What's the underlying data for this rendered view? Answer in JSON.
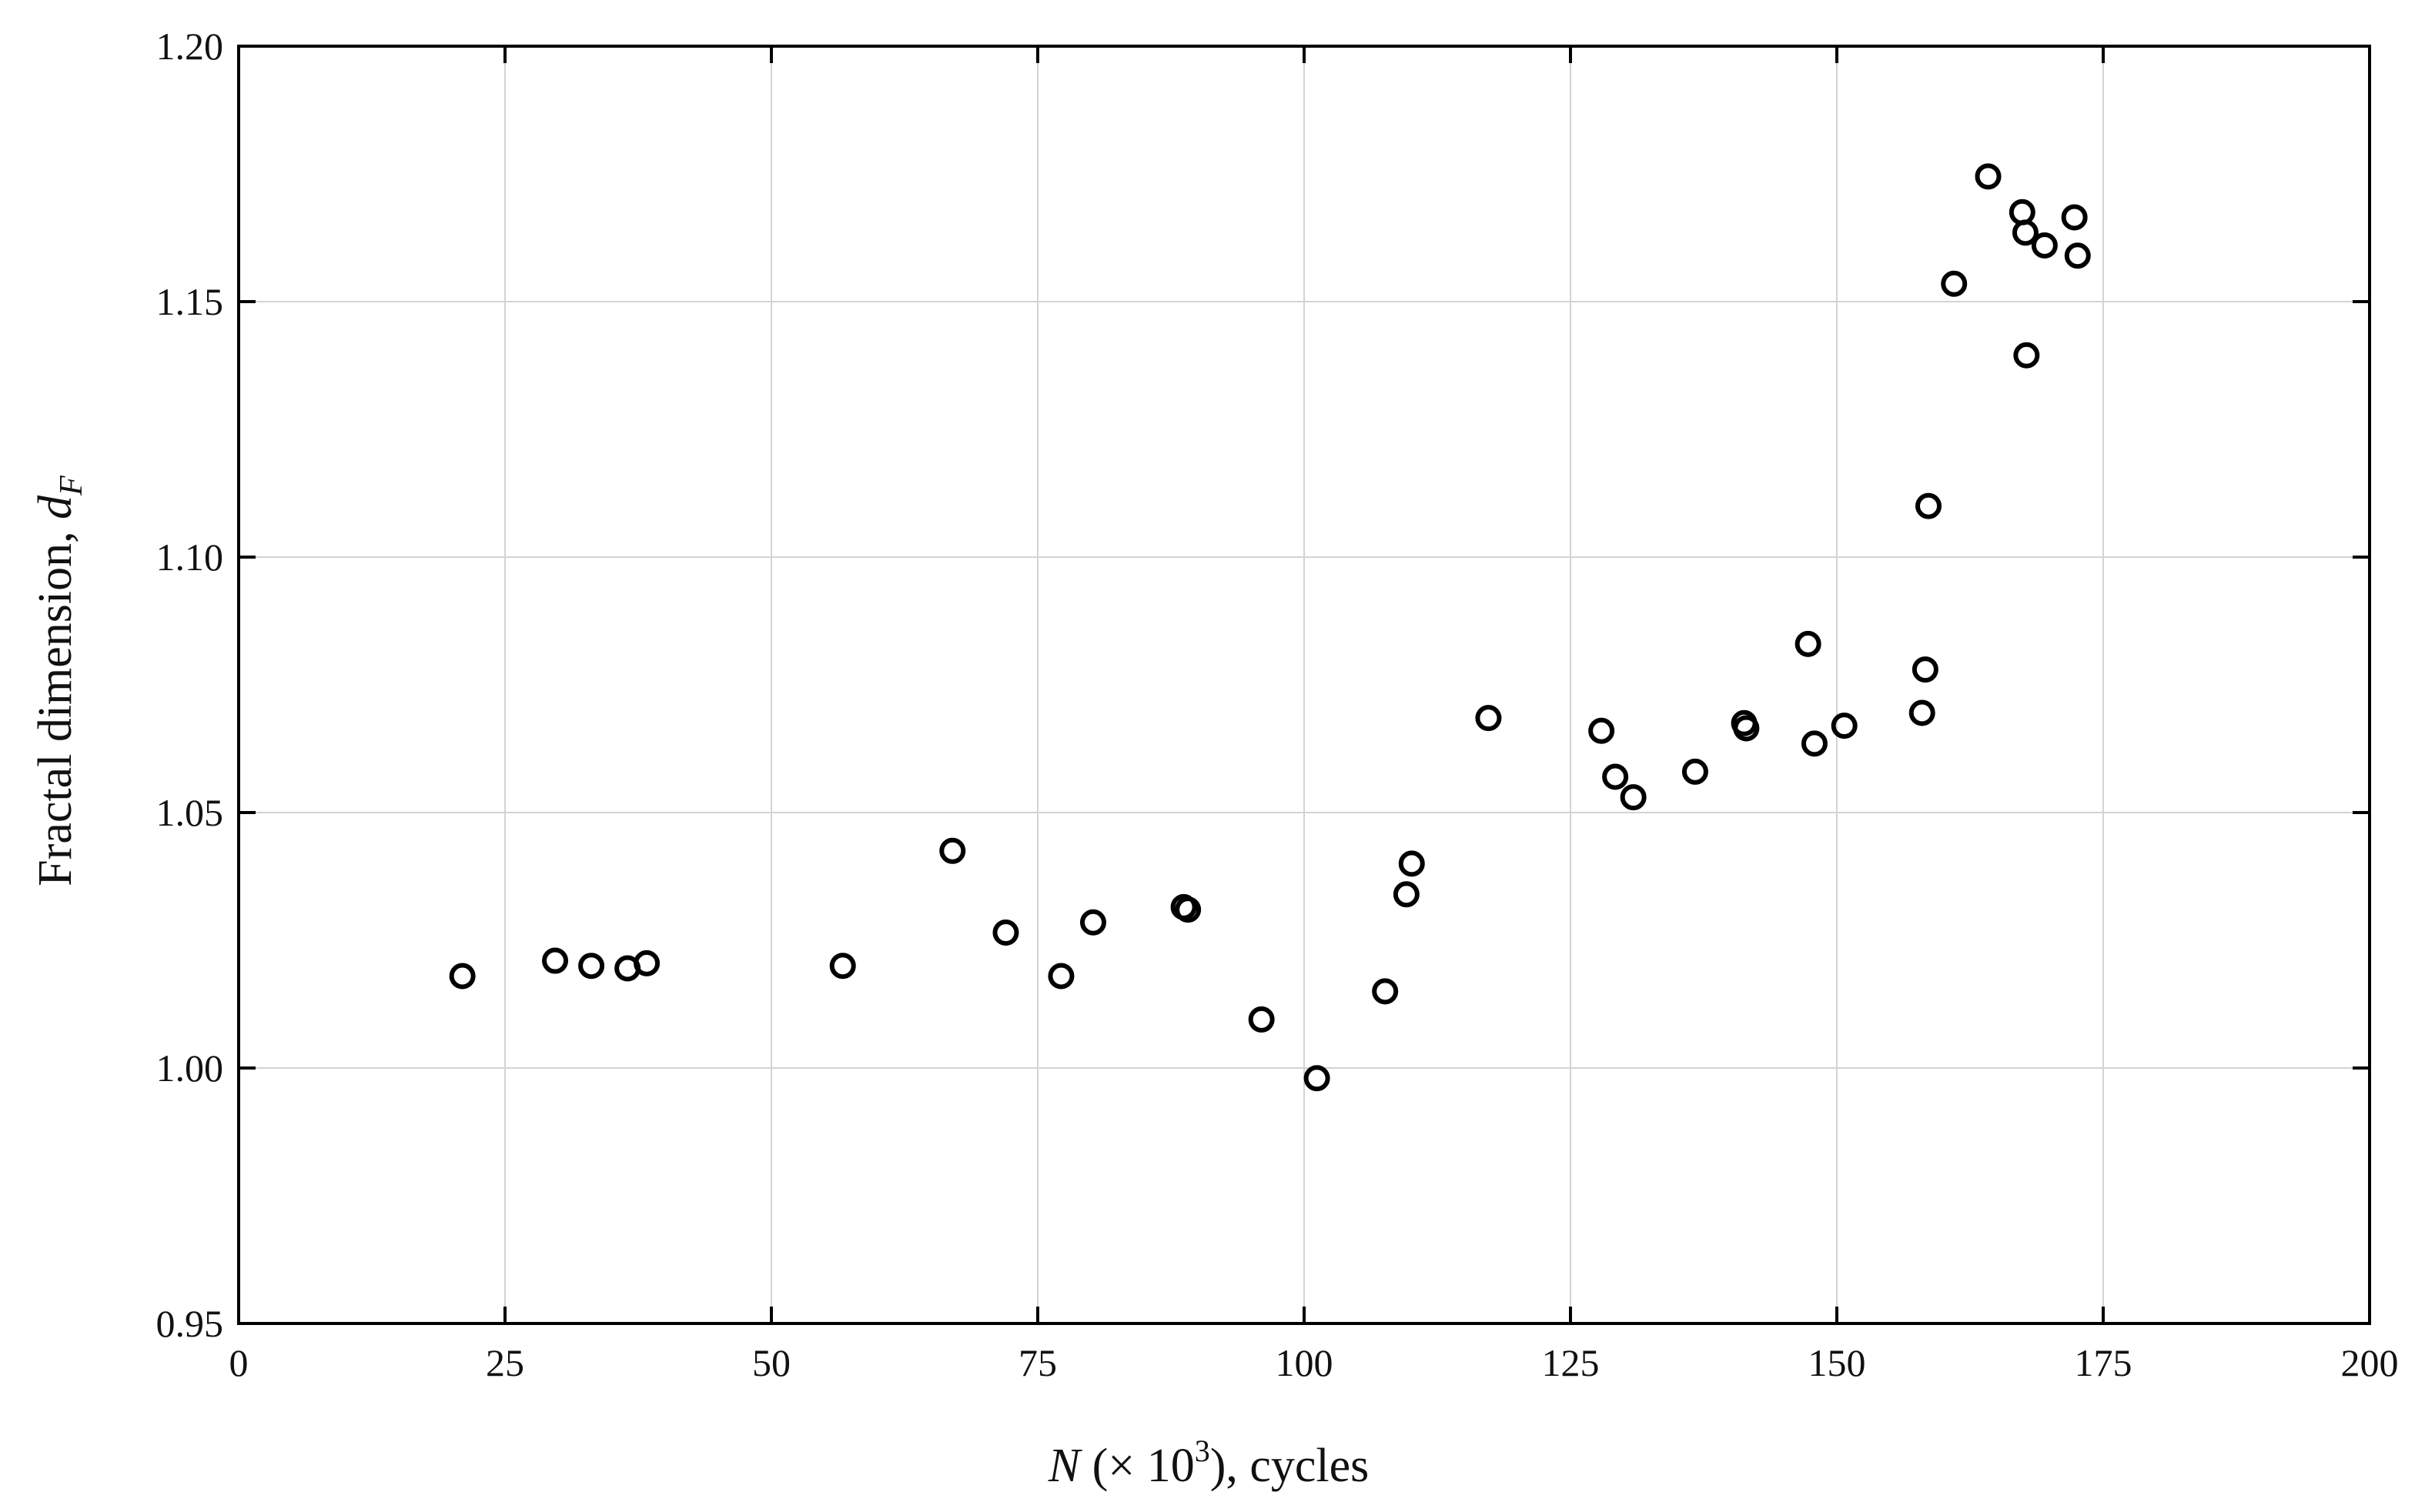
{
  "chart_data": {
    "type": "scatter",
    "title": "",
    "xlabel": {
      "var": "N",
      "mid": " (× 10",
      "sup": "3",
      "tail": "), cycles"
    },
    "ylabel": {
      "main": "Fractal dimension, ",
      "var": "d",
      "sub": "F"
    },
    "xlim": [
      0,
      200
    ],
    "ylim": [
      0.95,
      1.2
    ],
    "x_ticks": [
      0,
      25,
      50,
      75,
      100,
      125,
      150,
      175,
      200
    ],
    "x_tick_labels": [
      "0",
      "25",
      "50",
      "75",
      "100",
      "125",
      "150",
      "175",
      "200"
    ],
    "y_ticks": [
      0.95,
      1.0,
      1.05,
      1.1,
      1.15,
      1.2
    ],
    "y_tick_labels": [
      "0.95",
      "1.00",
      "1.05",
      "1.10",
      "1.15",
      "1.20"
    ],
    "grid": true,
    "legend": "none",
    "marker": "open-circle",
    "marker_color": "#000000",
    "points": [
      {
        "x": 21.0,
        "y": 1.018
      },
      {
        "x": 29.7,
        "y": 1.021
      },
      {
        "x": 33.1,
        "y": 1.02
      },
      {
        "x": 36.5,
        "y": 1.0195
      },
      {
        "x": 38.3,
        "y": 1.0205
      },
      {
        "x": 56.7,
        "y": 1.02
      },
      {
        "x": 67.0,
        "y": 1.0425
      },
      {
        "x": 72.0,
        "y": 1.0265
      },
      {
        "x": 77.2,
        "y": 1.018
      },
      {
        "x": 80.2,
        "y": 1.0285
      },
      {
        "x": 88.7,
        "y": 1.0315
      },
      {
        "x": 89.1,
        "y": 1.031
      },
      {
        "x": 96.0,
        "y": 1.0095
      },
      {
        "x": 101.2,
        "y": 0.998
      },
      {
        "x": 107.6,
        "y": 1.015
      },
      {
        "x": 109.6,
        "y": 1.034
      },
      {
        "x": 110.1,
        "y": 1.04
      },
      {
        "x": 117.3,
        "y": 1.0685
      },
      {
        "x": 127.9,
        "y": 1.066
      },
      {
        "x": 129.2,
        "y": 1.057
      },
      {
        "x": 130.9,
        "y": 1.053
      },
      {
        "x": 136.7,
        "y": 1.058
      },
      {
        "x": 141.3,
        "y": 1.0675
      },
      {
        "x": 141.5,
        "y": 1.0665
      },
      {
        "x": 147.3,
        "y": 1.083
      },
      {
        "x": 147.9,
        "y": 1.0635
      },
      {
        "x": 150.7,
        "y": 1.067
      },
      {
        "x": 158.0,
        "y": 1.0695
      },
      {
        "x": 158.3,
        "y": 1.078
      },
      {
        "x": 158.6,
        "y": 1.11
      },
      {
        "x": 161.0,
        "y": 1.1535
      },
      {
        "x": 164.2,
        "y": 1.1745
      },
      {
        "x": 167.4,
        "y": 1.1675
      },
      {
        "x": 167.7,
        "y": 1.1635
      },
      {
        "x": 167.8,
        "y": 1.1395
      },
      {
        "x": 169.5,
        "y": 1.161
      },
      {
        "x": 172.3,
        "y": 1.1665
      },
      {
        "x": 172.6,
        "y": 1.159
      }
    ]
  }
}
